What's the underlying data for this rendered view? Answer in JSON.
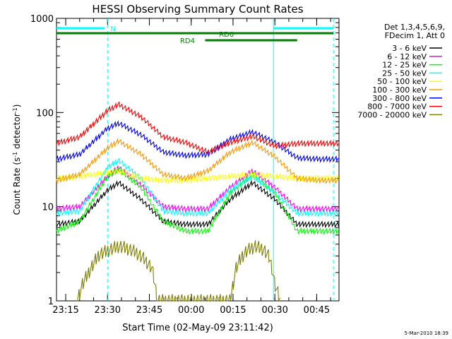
{
  "chart_data": {
    "type": "line",
    "title": "HESSI Observing Summary Count Rates",
    "xlabel": "Start Time (02-May-09 23:11:42)",
    "ylabel_parts": [
      "Count Rate (s",
      "-1",
      " detector",
      "-1",
      ")"
    ],
    "x_ticks": [
      "23:15",
      "23:30",
      "23:45",
      "00:00",
      "00:15",
      "00:30",
      "00:45"
    ],
    "y_ticks": [
      "1",
      "10",
      "100",
      "1000"
    ],
    "y_scale": "log",
    "ylim": [
      1,
      1000
    ],
    "xlim_minutes_after_23:00": [
      11.7,
      113
    ],
    "legend_header": [
      "Det 1,3,4,5,6,9,",
      "FDecim 1, Att 0"
    ],
    "series": [
      {
        "name": "3 - 6 keV",
        "color": "#000000",
        "x": [
          11.7,
          20,
          30,
          34,
          42,
          50,
          58,
          66,
          74,
          82,
          90,
          98,
          106,
          113
        ],
        "y": [
          6.5,
          7,
          15,
          18,
          12,
          7,
          6.5,
          6.5,
          12,
          18,
          12,
          6.5,
          6.5,
          6.5
        ]
      },
      {
        "name": "6 - 12 keV",
        "color": "#ff00ff",
        "x": [
          11.7,
          20,
          30,
          34,
          42,
          50,
          58,
          66,
          74,
          82,
          90,
          98,
          106,
          113
        ],
        "y": [
          9.5,
          10,
          21,
          26,
          17,
          10,
          9.5,
          9.5,
          16,
          24,
          16,
          9.5,
          9.5,
          9.5
        ]
      },
      {
        "name": "12 - 25 keV",
        "color": "#00ff00",
        "x": [
          11.7,
          20,
          30,
          34,
          42,
          50,
          58,
          66,
          74,
          82,
          90,
          98,
          106,
          113
        ],
        "y": [
          5.5,
          7,
          21,
          25,
          16,
          7,
          5.5,
          5.5,
          14,
          22,
          14,
          5.5,
          5.5,
          5.5
        ]
      },
      {
        "name": "25 - 50 keV",
        "color": "#00ffff",
        "x": [
          11.7,
          20,
          30,
          34,
          42,
          50,
          58,
          66,
          74,
          82,
          90,
          98,
          106,
          113
        ],
        "y": [
          8.5,
          9,
          26,
          31,
          20,
          9,
          8.5,
          8.5,
          15,
          21,
          14,
          8.5,
          8.5,
          8.5
        ]
      },
      {
        "name": "50 - 100 keV",
        "color": "#ffff00",
        "x": [
          11.7,
          20,
          30,
          34,
          42,
          50,
          58,
          66,
          74,
          82,
          90,
          98,
          106,
          113
        ],
        "y": [
          20,
          21,
          23,
          24,
          20,
          19,
          19,
          20,
          21,
          22,
          21,
          20,
          20,
          20
        ]
      },
      {
        "name": "100 - 300 keV",
        "color": "#ff9900",
        "x": [
          11.7,
          20,
          30,
          34,
          42,
          50,
          58,
          66,
          74,
          82,
          90,
          98,
          106,
          113
        ],
        "y": [
          19,
          22,
          42,
          50,
          36,
          22,
          20,
          24,
          38,
          48,
          34,
          20,
          19,
          19
        ]
      },
      {
        "name": "300 - 800 keV",
        "color": "#0000ff",
        "x": [
          11.7,
          20,
          30,
          34,
          42,
          50,
          58,
          66,
          74,
          82,
          90,
          98,
          106,
          113
        ],
        "y": [
          32,
          36,
          68,
          77,
          58,
          38,
          35,
          36,
          52,
          62,
          48,
          33,
          32,
          32
        ]
      },
      {
        "name": "800 - 7000 keV",
        "color": "#ff0000",
        "x": [
          11.7,
          20,
          30,
          34,
          42,
          50,
          58,
          66,
          74,
          82,
          90,
          98,
          106,
          113
        ],
        "y": [
          47,
          55,
          105,
          122,
          90,
          55,
          48,
          38,
          48,
          56,
          44,
          47,
          47,
          47
        ]
      },
      {
        "name": "7000 - 20000 keV",
        "color": "#808000",
        "x": [
          19,
          21,
          24,
          26,
          27,
          29,
          32,
          34,
          37,
          40,
          43,
          46,
          48,
          74,
          76,
          78,
          80,
          83,
          86,
          88,
          89,
          90,
          92
        ],
        "y": [
          1,
          1.5,
          2.2,
          2.8,
          3.1,
          3.3,
          3.6,
          3.8,
          3.6,
          3.3,
          2.8,
          2.2,
          1,
          1,
          2.2,
          2.9,
          3.4,
          3.8,
          3.5,
          2.9,
          2.2,
          1.5,
          1
        ]
      }
    ],
    "annotations": {
      "saa_label": "N",
      "rd0_label": "RD0",
      "rd4_label": "RD4",
      "bar_colors": {
        "saa": "#00ffff",
        "rd": "#007f00"
      }
    },
    "timestamp": "5-Mar-2010 18:39"
  }
}
